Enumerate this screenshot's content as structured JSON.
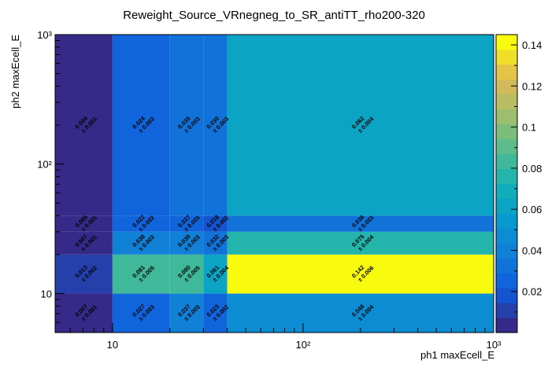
{
  "chart_data": {
    "type": "heatmap",
    "title": "Reweight_Source_VRnegneg_to_SR_antiTT_rho200-320",
    "xlabel": "ph1 maxEcell_E",
    "ylabel": "ph2 maxEcell_E",
    "x_scale": "log",
    "y_scale": "log",
    "xlim": [
      5,
      1000
    ],
    "ylim": [
      5,
      1000
    ],
    "x_edges": [
      5,
      10,
      20,
      30,
      40,
      1000
    ],
    "y_edges": [
      5,
      10,
      20,
      30,
      40,
      1000
    ],
    "x_ticks": [
      {
        "value": 10,
        "label": "10"
      },
      {
        "value": 100,
        "label": "10²"
      },
      {
        "value": 1000,
        "label": "10³"
      }
    ],
    "y_ticks": [
      {
        "value": 10,
        "label": "10"
      },
      {
        "value": 100,
        "label": "10²"
      },
      {
        "value": 1000,
        "label": "10³"
      }
    ],
    "zlim": [
      0,
      0.145
    ],
    "z_ticks": [
      "0.02",
      "0.04",
      "0.06",
      "0.08",
      "0.1",
      "0.12",
      "0.14"
    ],
    "palette": "parula",
    "cells": [
      {
        "ix": 0,
        "iy": 0,
        "value": 0.007,
        "label": "0.007",
        "error": "± 0.001"
      },
      {
        "ix": 1,
        "iy": 0,
        "value": 0.027,
        "label": "0.027",
        "error": "± 0.003"
      },
      {
        "ix": 2,
        "iy": 0,
        "value": 0.037,
        "label": "0.037",
        "error": "± 0.003"
      },
      {
        "ix": 3,
        "iy": 0,
        "value": 0.023,
        "label": "0.023",
        "error": "± 0.002"
      },
      {
        "ix": 4,
        "iy": 0,
        "value": 0.048,
        "label": "0.048",
        "error": "± 0.004"
      },
      {
        "ix": 0,
        "iy": 1,
        "value": 0.013,
        "label": "0.013",
        "error": "± 0.002"
      },
      {
        "ix": 1,
        "iy": 1,
        "value": 0.081,
        "label": "0.081",
        "error": "± 0.005"
      },
      {
        "ix": 2,
        "iy": 1,
        "value": 0.08,
        "label": "0.080",
        "error": "± 0.005"
      },
      {
        "ix": 3,
        "iy": 1,
        "value": 0.061,
        "label": "0.061",
        "error": "± 0.004"
      },
      {
        "ix": 4,
        "iy": 1,
        "value": 0.142,
        "label": "0.142",
        "error": "± 0.006"
      },
      {
        "ix": 0,
        "iy": 2,
        "value": 0.007,
        "label": "0.007",
        "error": "± 0.001"
      },
      {
        "ix": 1,
        "iy": 2,
        "value": 0.038,
        "label": "0.038",
        "error": "± 0.003"
      },
      {
        "ix": 2,
        "iy": 2,
        "value": 0.039,
        "label": "0.039",
        "error": "± 0.003"
      },
      {
        "ix": 3,
        "iy": 2,
        "value": 0.032,
        "label": "0.032",
        "error": "± 0.003"
      },
      {
        "ix": 4,
        "iy": 2,
        "value": 0.075,
        "label": "0.075",
        "error": "± 0.004"
      },
      {
        "ix": 0,
        "iy": 3,
        "value": 0.005,
        "label": "0.005",
        "error": "± 0.001"
      },
      {
        "ix": 1,
        "iy": 3,
        "value": 0.022,
        "label": "0.022",
        "error": "± 0.002"
      },
      {
        "ix": 2,
        "iy": 3,
        "value": 0.027,
        "label": "0.027",
        "error": "± 0.003"
      },
      {
        "ix": 3,
        "iy": 3,
        "value": 0.018,
        "label": "0.018",
        "error": "± 0.002"
      },
      {
        "ix": 4,
        "iy": 3,
        "value": 0.036,
        "label": "0.036",
        "error": "± 0.003"
      },
      {
        "ix": 0,
        "iy": 4,
        "value": 0.004,
        "label": "0.004",
        "error": "± 0.001"
      },
      {
        "ix": 1,
        "iy": 4,
        "value": 0.024,
        "label": "0.024",
        "error": "± 0.003"
      },
      {
        "ix": 2,
        "iy": 4,
        "value": 0.035,
        "label": "0.035",
        "error": "± 0.003"
      },
      {
        "ix": 3,
        "iy": 4,
        "value": 0.03,
        "label": "0.030",
        "error": "± 0.003"
      },
      {
        "ix": 4,
        "iy": 4,
        "value": 0.062,
        "label": "0.062",
        "error": "± 0.004"
      }
    ]
  }
}
